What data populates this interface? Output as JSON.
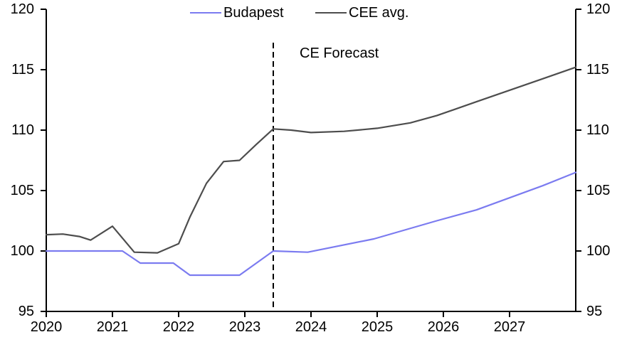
{
  "chart_data": {
    "type": "line",
    "title": "",
    "annotation": "CE Forecast",
    "legend_position": "top",
    "grid": false,
    "xlim": [
      2020,
      2028
    ],
    "ylim": [
      95,
      120
    ],
    "x_tick_labels": [
      "2020",
      "2021",
      "2022",
      "2023",
      "2024",
      "2025",
      "2026",
      "2027"
    ],
    "y_tick_labels": [
      "95",
      "100",
      "105",
      "110",
      "115",
      "120"
    ],
    "forecast_divider_x": 2023.43,
    "axis_color": "#000000",
    "series": [
      {
        "name": "Budapest",
        "color": "#7B7BF0",
        "points": [
          [
            2020.0,
            100.0
          ],
          [
            2020.5,
            100.0
          ],
          [
            2021.15,
            100.0
          ],
          [
            2021.42,
            99.0
          ],
          [
            2021.92,
            99.0
          ],
          [
            2022.17,
            98.0
          ],
          [
            2022.92,
            98.0
          ],
          [
            2023.43,
            100.0
          ],
          [
            2023.95,
            99.9
          ],
          [
            2024.95,
            101.0
          ],
          [
            2025.9,
            102.5
          ],
          [
            2026.5,
            103.4
          ],
          [
            2027.0,
            104.4
          ],
          [
            2027.5,
            105.4
          ],
          [
            2028.0,
            106.5
          ]
        ]
      },
      {
        "name": "CEE avg.",
        "color": "#4D4D4D",
        "points": [
          [
            2020.0,
            101.35
          ],
          [
            2020.25,
            101.4
          ],
          [
            2020.5,
            101.2
          ],
          [
            2020.67,
            100.9
          ],
          [
            2021.0,
            102.05
          ],
          [
            2021.33,
            99.9
          ],
          [
            2021.68,
            99.85
          ],
          [
            2022.0,
            100.6
          ],
          [
            2022.17,
            102.8
          ],
          [
            2022.42,
            105.6
          ],
          [
            2022.68,
            107.4
          ],
          [
            2022.92,
            107.5
          ],
          [
            2023.17,
            108.8
          ],
          [
            2023.43,
            110.1
          ],
          [
            2023.7,
            110.0
          ],
          [
            2024.0,
            109.8
          ],
          [
            2024.5,
            109.9
          ],
          [
            2025.0,
            110.15
          ],
          [
            2025.5,
            110.6
          ],
          [
            2025.9,
            111.2
          ],
          [
            2026.5,
            112.35
          ],
          [
            2027.0,
            113.3
          ],
          [
            2027.5,
            114.25
          ],
          [
            2028.0,
            115.2
          ]
        ]
      }
    ]
  }
}
